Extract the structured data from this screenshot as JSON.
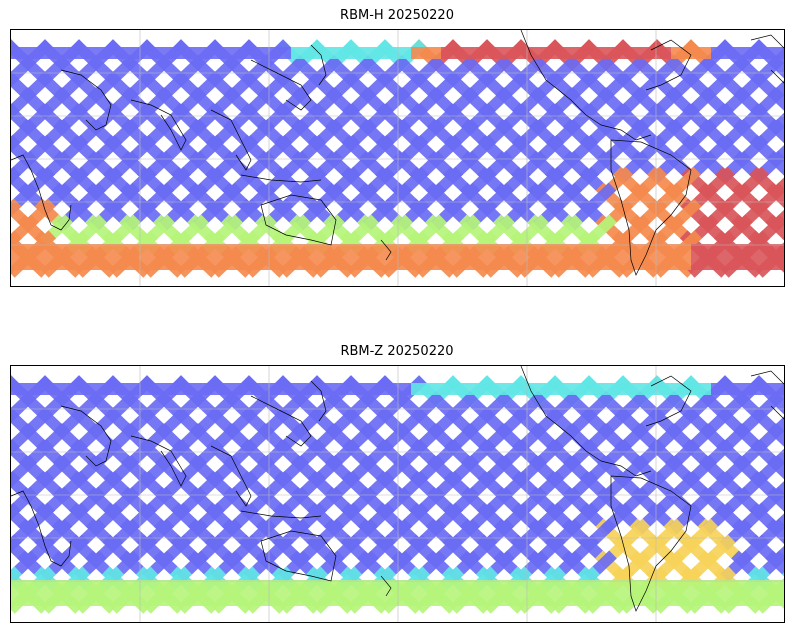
{
  "panels": [
    {
      "title": "RBM-H 20250220",
      "colormap": "jet",
      "hot_bands": [
        "north-edge-pacific",
        "south-edge",
        "south-atlantic"
      ]
    },
    {
      "title": "RBM-Z 20250220",
      "colormap": "jet",
      "hot_bands": [
        "south-edge-weak",
        "south-atlantic-weak"
      ]
    }
  ],
  "colors": {
    "low": "#6b6cf4",
    "mid_low": "#5aa7f5",
    "mid": "#62e6e6",
    "mid_high": "#b6f57a",
    "high": "#f7d35a",
    "very_high": "#f58a4e",
    "max": "#d9555a"
  }
}
